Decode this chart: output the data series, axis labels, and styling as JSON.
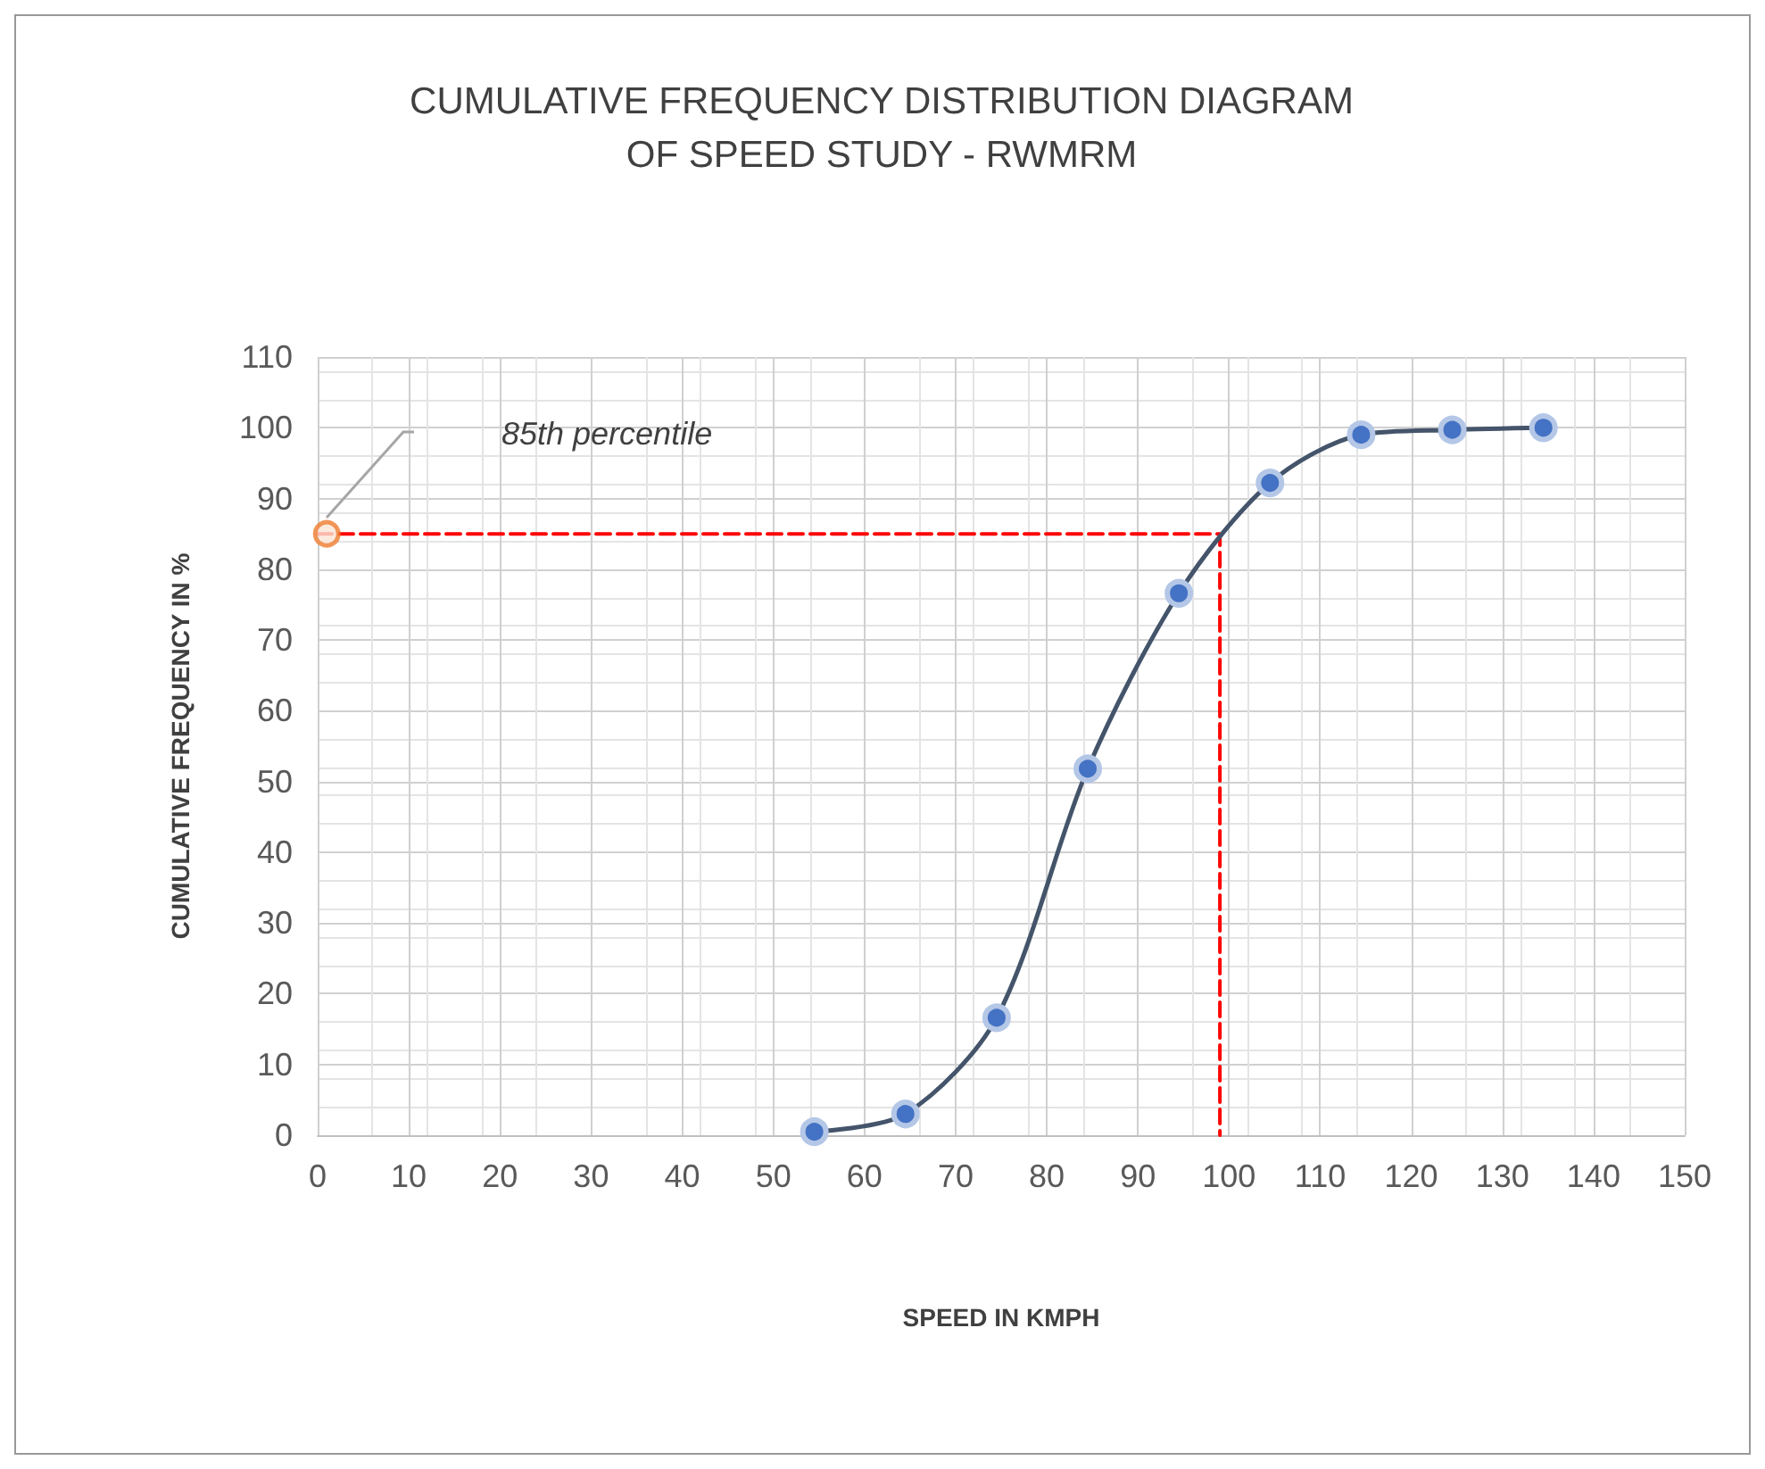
{
  "chart_data": {
    "type": "line",
    "title": "CUMULATIVE FREQUENCY DISTRIBUTION DIAGRAM\nOF SPEED STUDY - RWMRM",
    "xlabel": "SPEED IN KMPH",
    "ylabel": "CUMULATIVE FREQUENCY IN %",
    "x": [
      54.5,
      64.5,
      74.5,
      84.5,
      94.5,
      104.5,
      114.5,
      124.5,
      134.5
    ],
    "series": [
      {
        "color": "#4472c4",
        "values": [
          0.5,
          3,
          16.6,
          51.8,
          76.6,
          92.2,
          99,
          99.7,
          100
        ],
        "marker": "circle",
        "line_style": "solid"
      },
      {
        "type": "line",
        "color": "#ff0000",
        "x": [
          0,
          99,
          99
        ],
        "values": [
          85,
          85,
          0
        ],
        "marker": "none",
        "line_style": "dashed"
      },
      {
        "type": "scatter",
        "color": "#ed7d31",
        "x": [
          1
        ],
        "values": [
          85
        ],
        "marker": "circle"
      }
    ],
    "annotations": [
      "85th percentile"
    ],
    "xlim": [
      0,
      150
    ],
    "xticks": [
      0,
      10,
      20,
      30,
      40,
      50,
      60,
      70,
      80,
      90,
      100,
      110,
      120,
      130,
      140,
      150
    ],
    "ylim": [
      0,
      110
    ],
    "yticks": [
      0,
      10,
      20,
      30,
      40,
      50,
      60,
      70,
      80,
      90,
      100,
      110
    ],
    "grid": true
  }
}
